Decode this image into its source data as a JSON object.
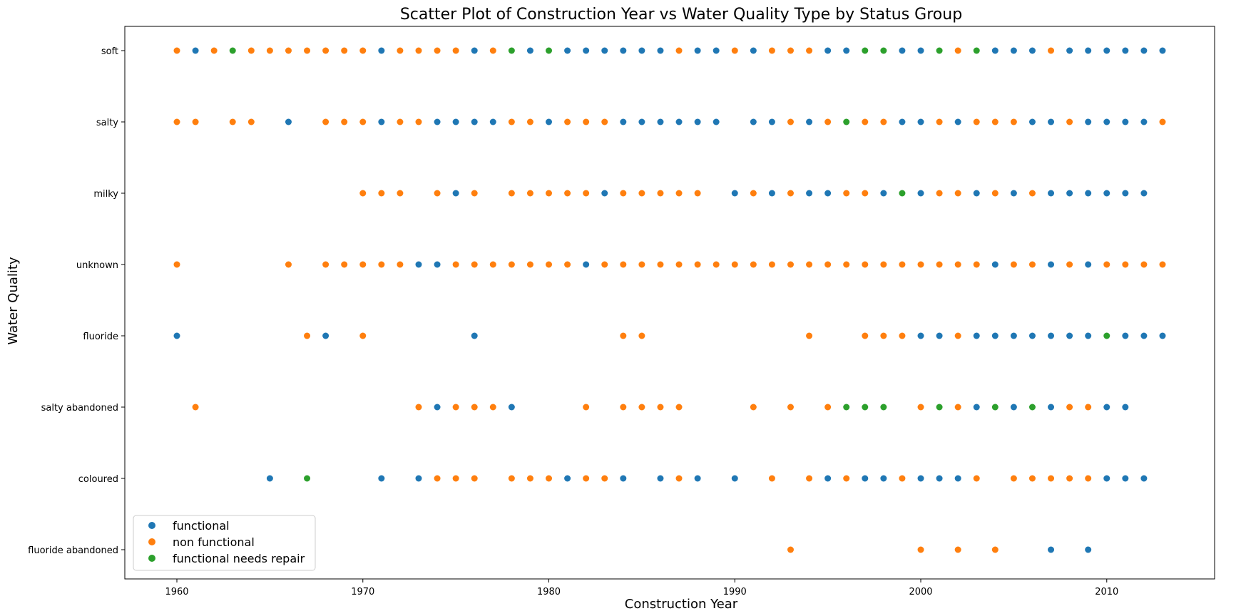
{
  "chart_data": {
    "type": "scatter",
    "title": "Scatter Plot of Construction Year vs Water Quality Type by Status Group",
    "xlabel": "Construction Year",
    "ylabel": "Water Quality",
    "xlim": [
      1957.2,
      2015.8
    ],
    "xticks": [
      1960,
      1970,
      1980,
      1990,
      2000,
      2010
    ],
    "categories": [
      "soft",
      "salty",
      "milky",
      "unknown",
      "fluoride",
      "salty abandoned",
      "coloured",
      "fluoride abandoned"
    ],
    "grid": false,
    "legend_position": "lower-left",
    "colors": {
      "functional": "#1f77b4",
      "non functional": "#ff7f0e",
      "functional needs repair": "#2ca02c"
    },
    "series": [
      {
        "name": "functional",
        "color": "#1f77b4",
        "points": {
          "soft": [
            1961,
            1971,
            1976,
            1979,
            1981,
            1982,
            1983,
            1984,
            1985,
            1986,
            1988,
            1989,
            1991,
            1995,
            1996,
            1999,
            2000,
            2004,
            2005,
            2006,
            2008,
            2009,
            2010,
            2011,
            2012,
            2013
          ],
          "salty": [
            1966,
            1971,
            1974,
            1975,
            1976,
            1977,
            1980,
            1984,
            1985,
            1986,
            1987,
            1988,
            1989,
            1991,
            1992,
            1994,
            1999,
            2000,
            2002,
            2006,
            2007,
            2009,
            2010,
            2011,
            2012
          ],
          "milky": [
            1975,
            1983,
            1990,
            1992,
            1994,
            1995,
            1998,
            2000,
            2003,
            2005,
            2007,
            2008,
            2009,
            2010,
            2011,
            2012
          ],
          "unknown": [
            1973,
            1974,
            1982,
            2004,
            2007,
            2009
          ],
          "fluoride": [
            1960,
            1968,
            1976,
            2000,
            2001,
            2003,
            2004,
            2005,
            2006,
            2007,
            2008,
            2009,
            2011,
            2012,
            2013
          ],
          "salty abandoned": [
            1974,
            1978,
            2003,
            2005,
            2007,
            2010,
            2011
          ],
          "coloured": [
            1965,
            1971,
            1973,
            1981,
            1984,
            1986,
            1988,
            1990,
            1995,
            1997,
            1998,
            2000,
            2001,
            2002,
            2010,
            2011,
            2012
          ],
          "fluoride abandoned": [
            2007,
            2009
          ]
        }
      },
      {
        "name": "non functional",
        "color": "#ff7f0e",
        "points": {
          "soft": [
            1960,
            1962,
            1964,
            1965,
            1966,
            1967,
            1968,
            1969,
            1970,
            1972,
            1973,
            1974,
            1975,
            1977,
            1987,
            1990,
            1992,
            1993,
            1994,
            2002,
            2007
          ],
          "salty": [
            1960,
            1961,
            1963,
            1964,
            1968,
            1969,
            1970,
            1972,
            1973,
            1978,
            1979,
            1981,
            1982,
            1983,
            1993,
            1995,
            1997,
            1998,
            2001,
            2003,
            2004,
            2005,
            2008,
            2013
          ],
          "milky": [
            1970,
            1971,
            1972,
            1974,
            1976,
            1978,
            1979,
            1980,
            1981,
            1982,
            1984,
            1985,
            1986,
            1987,
            1988,
            1991,
            1993,
            1996,
            1997,
            2001,
            2002,
            2004,
            2006
          ],
          "unknown": [
            1960,
            1966,
            1968,
            1969,
            1970,
            1971,
            1972,
            1975,
            1976,
            1977,
            1978,
            1979,
            1980,
            1981,
            1983,
            1984,
            1985,
            1986,
            1987,
            1988,
            1989,
            1990,
            1991,
            1992,
            1993,
            1994,
            1995,
            1996,
            1997,
            1998,
            1999,
            2000,
            2001,
            2002,
            2003,
            2005,
            2006,
            2008,
            2010,
            2011,
            2012,
            2013
          ],
          "fluoride": [
            1967,
            1970,
            1984,
            1985,
            1994,
            1997,
            1998,
            1999,
            2002
          ],
          "salty abandoned": [
            1961,
            1973,
            1975,
            1976,
            1977,
            1982,
            1984,
            1985,
            1986,
            1987,
            1991,
            1993,
            1995,
            2000,
            2002,
            2008,
            2009
          ],
          "coloured": [
            1974,
            1975,
            1976,
            1978,
            1979,
            1980,
            1982,
            1983,
            1987,
            1992,
            1994,
            1996,
            1999,
            2003,
            2005,
            2006,
            2007,
            2008,
            2009
          ],
          "fluoride abandoned": [
            1993,
            2000,
            2002,
            2004
          ]
        }
      },
      {
        "name": "functional needs repair",
        "color": "#2ca02c",
        "points": {
          "soft": [
            1963,
            1978,
            1980,
            1997,
            1998,
            2001,
            2003
          ],
          "salty": [
            1996
          ],
          "milky": [
            1999
          ],
          "unknown": [],
          "fluoride": [
            2010
          ],
          "salty abandoned": [
            1996,
            1997,
            1998,
            2001,
            2004,
            2006
          ],
          "coloured": [
            1967
          ],
          "fluoride abandoned": []
        }
      }
    ]
  }
}
